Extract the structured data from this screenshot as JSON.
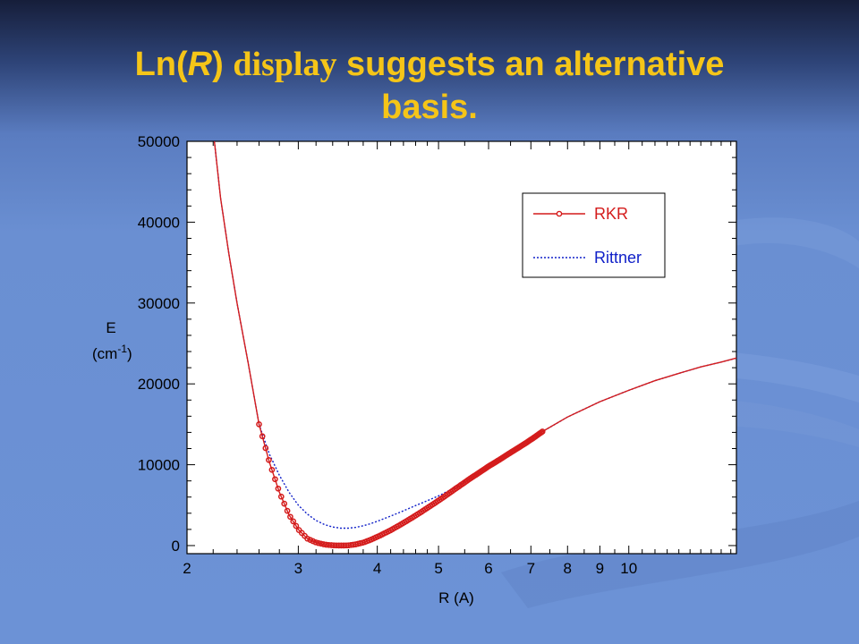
{
  "slide": {
    "title_part1": "Ln(",
    "title_italic": "R",
    "title_part2": ") ",
    "title_serif": "display",
    "title_part3": " suggests an alternative",
    "title_line2": "basis.",
    "title_color": "#f5c518"
  },
  "chart_data": {
    "type": "line",
    "xlabel": "R (A)",
    "ylabel": "E",
    "ylabel_units": "(cm",
    "ylabel_units_sup": "-1",
    "ylabel_units_close": ")",
    "x_scale": "log",
    "xlim": [
      2,
      14.8
    ],
    "ylim": [
      -1000,
      50000
    ],
    "x_ticks": [
      {
        "v": 2,
        "label": "2"
      },
      {
        "v": 3,
        "label": "3"
      },
      {
        "v": 4,
        "label": "4"
      },
      {
        "v": 5,
        "label": "5"
      },
      {
        "v": 6,
        "label": "6"
      },
      {
        "v": 7,
        "label": "7"
      },
      {
        "v": 8,
        "label": "8"
      },
      {
        "v": 9,
        "label": "9"
      },
      {
        "v": 10,
        "label": "10"
      }
    ],
    "y_ticks": [
      {
        "v": 0,
        "label": "0"
      },
      {
        "v": 10000,
        "label": "10000"
      },
      {
        "v": 20000,
        "label": "20000"
      },
      {
        "v": 30000,
        "label": "30000"
      },
      {
        "v": 40000,
        "label": "40000"
      },
      {
        "v": 50000,
        "label": "50000"
      }
    ],
    "legend_position": "top-right",
    "grid": false,
    "series": [
      {
        "name": "RKR",
        "color": "#d41c1c",
        "style": "solid-with-markers",
        "x": [
          2.21,
          2.26,
          2.33,
          2.4,
          2.5,
          2.6,
          2.7,
          2.8,
          2.9,
          3.0,
          3.1,
          3.2,
          3.3,
          3.4,
          3.5,
          3.6,
          3.7,
          3.8,
          3.9,
          4.0,
          4.2,
          4.4,
          4.6,
          4.8,
          5.0,
          5.3,
          5.6,
          6.0,
          6.5,
          7.0,
          7.3,
          8.0,
          9.0,
          10.0,
          11.0,
          12.0,
          13.0,
          14.0,
          14.8
        ],
        "y": [
          50000,
          43000,
          36000,
          30000,
          22500,
          15000,
          10300,
          6600,
          3800,
          2000,
          860,
          380,
          130,
          30,
          0,
          30,
          150,
          370,
          700,
          1080,
          1900,
          2800,
          3720,
          4650,
          5570,
          6950,
          8250,
          9800,
          11500,
          13100,
          14100,
          15900,
          17800,
          19200,
          20400,
          21300,
          22100,
          22700,
          23200
        ],
        "marked_range": [
          2.6,
          7.3
        ]
      },
      {
        "name": "Rittner",
        "color": "#1020c8",
        "style": "dotted",
        "x": [
          2.21,
          2.26,
          2.33,
          2.4,
          2.5,
          2.6,
          2.7,
          2.8,
          2.9,
          3.0,
          3.1,
          3.2,
          3.3,
          3.4,
          3.5,
          3.6,
          3.7,
          3.8,
          3.9,
          4.0,
          4.2,
          4.4,
          4.6,
          4.8,
          5.0,
          5.3,
          5.6,
          6.0,
          6.5,
          7.0,
          7.3,
          8.0,
          9.0,
          10.0,
          11.0,
          12.0,
          13.0,
          14.0,
          14.8
        ],
        "y": [
          50000,
          43000,
          36000,
          30000,
          22500,
          15000,
          11300,
          8700,
          6600,
          5000,
          3900,
          3100,
          2600,
          2300,
          2150,
          2150,
          2250,
          2450,
          2700,
          3000,
          3650,
          4300,
          4950,
          5550,
          6150,
          7150,
          8350,
          9800,
          11500,
          13100,
          14100,
          15900,
          17800,
          19200,
          20400,
          21300,
          22100,
          22700,
          23200
        ]
      }
    ]
  }
}
